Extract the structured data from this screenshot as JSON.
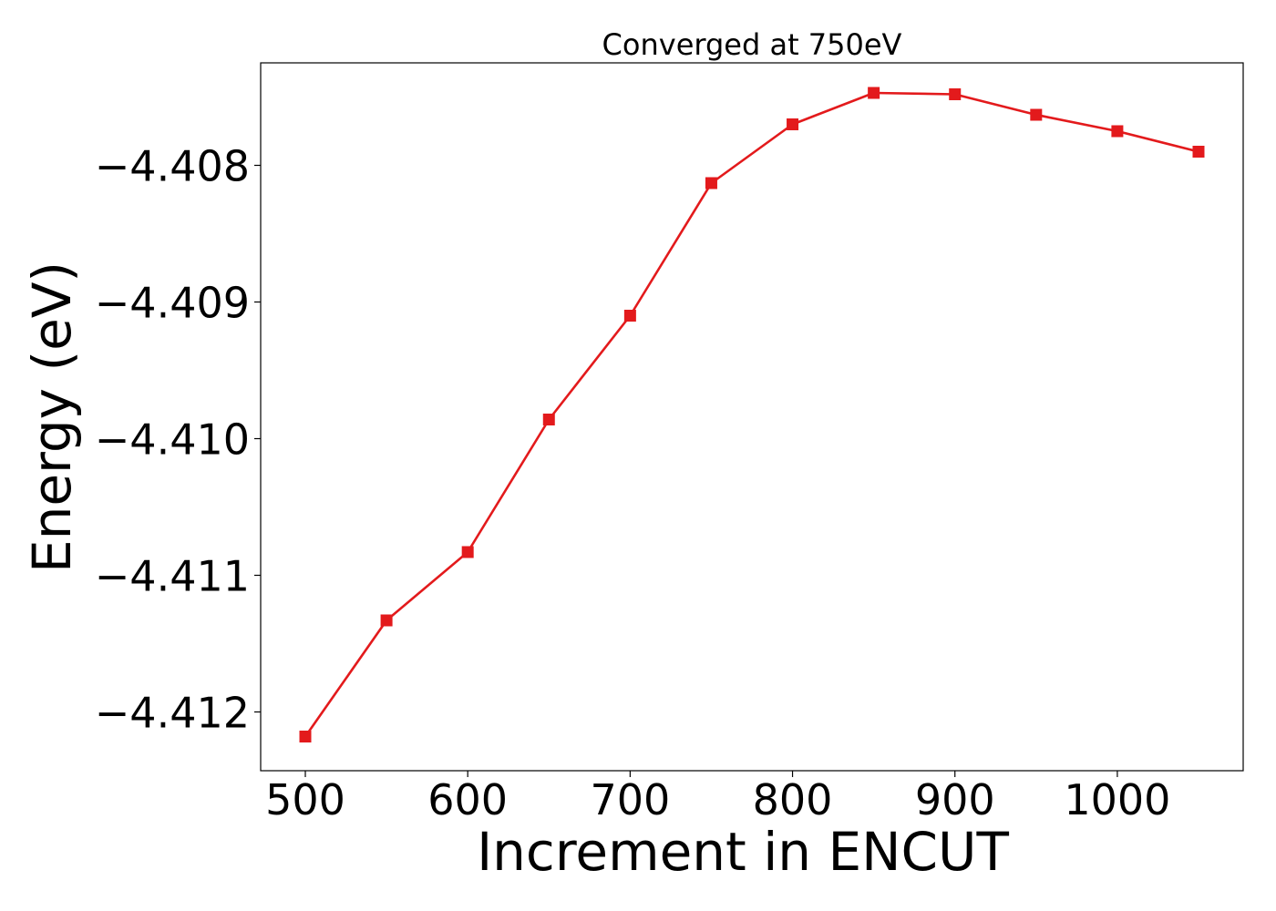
{
  "chart_data": {
    "type": "line",
    "title": "Converged at 750eV",
    "xlabel": "Increment in ENCUT",
    "ylabel": "Energy (eV)",
    "xlim": [
      472.5,
      1077.5
    ],
    "ylim": [
      -4.41243,
      -4.40725
    ],
    "x_ticks": [
      500,
      600,
      700,
      800,
      900,
      1000
    ],
    "x_tick_labels": [
      "500",
      "600",
      "700",
      "800",
      "900",
      "1000"
    ],
    "y_ticks": [
      -4.408,
      -4.409,
      -4.41,
      -4.411,
      -4.412
    ],
    "y_tick_labels": [
      "−4.408",
      "−4.409",
      "−4.410",
      "−4.411",
      "−4.412"
    ],
    "grid": false,
    "series": [
      {
        "color": "#e31a1c",
        "marker": "square",
        "x": [
          500,
          550,
          600,
          650,
          700,
          750,
          800,
          850,
          900,
          950,
          1000,
          1050
        ],
        "y": [
          -4.41218,
          -4.41133,
          -4.41083,
          -4.40986,
          -4.4091,
          -4.40813,
          -4.4077,
          -4.40747,
          -4.40748,
          -4.40763,
          -4.40775,
          -4.4079
        ]
      }
    ]
  }
}
